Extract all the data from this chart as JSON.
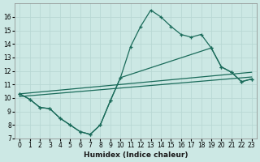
{
  "xlabel": "Humidex (Indice chaleur)",
  "bg_color": "#cce8e4",
  "grid_color": "#b8d8d4",
  "line_color": "#1a6b5a",
  "xlim": [
    -0.5,
    23.5
  ],
  "ylim": [
    7,
    17
  ],
  "xticks": [
    0,
    1,
    2,
    3,
    4,
    5,
    6,
    7,
    8,
    9,
    10,
    11,
    12,
    13,
    14,
    15,
    16,
    17,
    18,
    19,
    20,
    21,
    22,
    23
  ],
  "yticks": [
    7,
    8,
    9,
    10,
    11,
    12,
    13,
    14,
    15,
    16
  ],
  "line1_x": [
    0,
    1,
    2,
    3,
    4,
    5,
    6,
    7,
    8,
    9,
    10,
    11,
    12,
    13,
    14,
    15,
    16,
    17,
    18,
    19,
    20,
    21,
    22,
    23
  ],
  "line1_y": [
    10.3,
    9.9,
    9.3,
    9.2,
    8.5,
    8.0,
    7.5,
    7.3,
    8.0,
    9.8,
    11.5,
    13.8,
    15.3,
    16.5,
    16.0,
    15.3,
    14.7,
    14.5,
    14.7,
    13.7,
    12.3,
    11.9,
    11.2,
    11.4
  ],
  "line2_x": [
    0,
    1,
    2,
    3,
    4,
    5,
    6,
    7,
    8,
    9,
    10,
    19,
    20,
    21,
    22,
    23
  ],
  "line2_y": [
    10.3,
    9.9,
    9.3,
    9.2,
    8.5,
    8.0,
    7.5,
    7.3,
    8.0,
    9.8,
    11.5,
    13.7,
    12.3,
    11.9,
    11.2,
    11.4
  ],
  "trend1_x": [
    0,
    23
  ],
  "trend1_y": [
    10.1,
    11.55
  ],
  "trend2_x": [
    0,
    23
  ],
  "trend2_y": [
    10.3,
    11.9
  ]
}
